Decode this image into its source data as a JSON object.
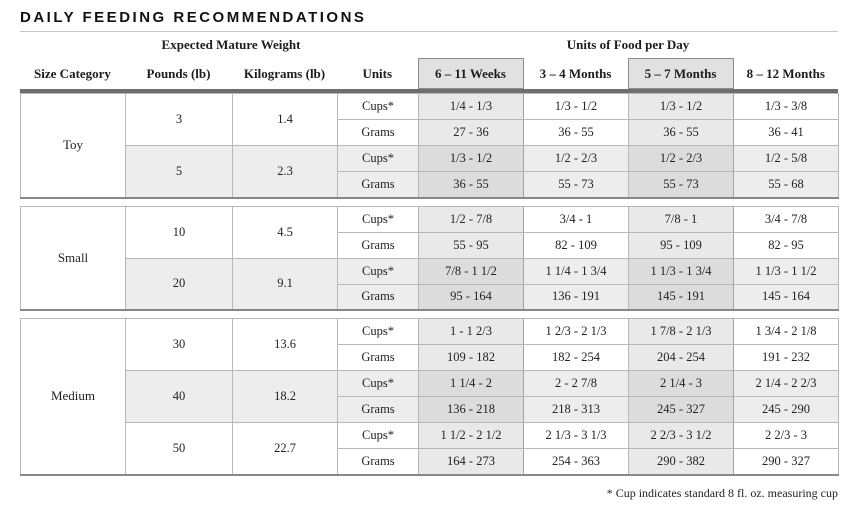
{
  "title": "DAILY FEEDING RECOMMENDATIONS",
  "footnote": "* Cup indicates standard 8 fl. oz. measuring cup",
  "colors": {
    "shaded_row_bg": "#ededed",
    "highlight_col_bg": "#e9e9e9",
    "highlight_col_shaded_bg": "#dcdcdc",
    "header_box_bg": "#e1e1e1",
    "header_box_border": "#8d8d8d",
    "cell_border": "#b7b7b7",
    "section_rule": "#888888",
    "double_rule": "#6e6e6e"
  },
  "table": {
    "group_headers": {
      "weight": "Expected Mature Weight",
      "food": "Units of Food per Day"
    },
    "columns": {
      "size": "Size Category",
      "pounds": "Pounds (lb)",
      "kilograms": "Kilograms (lb)",
      "units": "Units",
      "ages": [
        "6 – 11 Weeks",
        "3 – 4 Months",
        "5 – 7 Months",
        "8 – 12 Months"
      ]
    },
    "highlighted_age_columns": [
      0,
      2
    ],
    "unit_labels": {
      "cups": "Cups*",
      "grams": "Grams"
    },
    "sections": [
      {
        "name": "Toy",
        "weights": [
          {
            "pounds": "3",
            "kilograms": "1.4",
            "cups": [
              "1/4 - 1/3",
              "1/3 - 1/2",
              "1/3 - 1/2",
              "1/3 - 3/8"
            ],
            "grams": [
              "27 - 36",
              "36 - 55",
              "36 - 55",
              "36 - 41"
            ]
          },
          {
            "pounds": "5",
            "kilograms": "2.3",
            "cups": [
              "1/3 - 1/2",
              "1/2 - 2/3",
              "1/2 - 2/3",
              "1/2 - 5/8"
            ],
            "grams": [
              "36 - 55",
              "55 - 73",
              "55 - 73",
              "55 - 68"
            ]
          }
        ]
      },
      {
        "name": "Small",
        "weights": [
          {
            "pounds": "10",
            "kilograms": "4.5",
            "cups": [
              "1/2 - 7/8",
              "3/4 - 1",
              "7/8 - 1",
              "3/4 - 7/8"
            ],
            "grams": [
              "55 - 95",
              "82 - 109",
              "95 - 109",
              "82 - 95"
            ]
          },
          {
            "pounds": "20",
            "kilograms": "9.1",
            "cups": [
              "7/8 - 1 1/2",
              "1 1/4 - 1 3/4",
              "1 1/3 - 1 3/4",
              "1 1/3 - 1 1/2"
            ],
            "grams": [
              "95 - 164",
              "136 - 191",
              "145 - 191",
              "145 - 164"
            ]
          }
        ]
      },
      {
        "name": "Medium",
        "weights": [
          {
            "pounds": "30",
            "kilograms": "13.6",
            "cups": [
              "1 - 1 2/3",
              "1 2/3 - 2 1/3",
              "1 7/8 - 2 1/3",
              "1 3/4 - 2 1/8"
            ],
            "grams": [
              "109 - 182",
              "182 - 254",
              "204 - 254",
              "191 - 232"
            ]
          },
          {
            "pounds": "40",
            "kilograms": "18.2",
            "cups": [
              "1 1/4 - 2",
              "2 - 2 7/8",
              "2 1/4 - 3",
              "2 1/4 - 2 2/3"
            ],
            "grams": [
              "136 - 218",
              "218 - 313",
              "245 - 327",
              "245 - 290"
            ]
          },
          {
            "pounds": "50",
            "kilograms": "22.7",
            "cups": [
              "1 1/2 - 2 1/2",
              "2 1/3 - 3 1/3",
              "2 2/3 - 3 1/2",
              "2 2/3 - 3"
            ],
            "grams": [
              "164 - 273",
              "254 - 363",
              "290 - 382",
              "290 - 327"
            ]
          }
        ]
      }
    ]
  }
}
